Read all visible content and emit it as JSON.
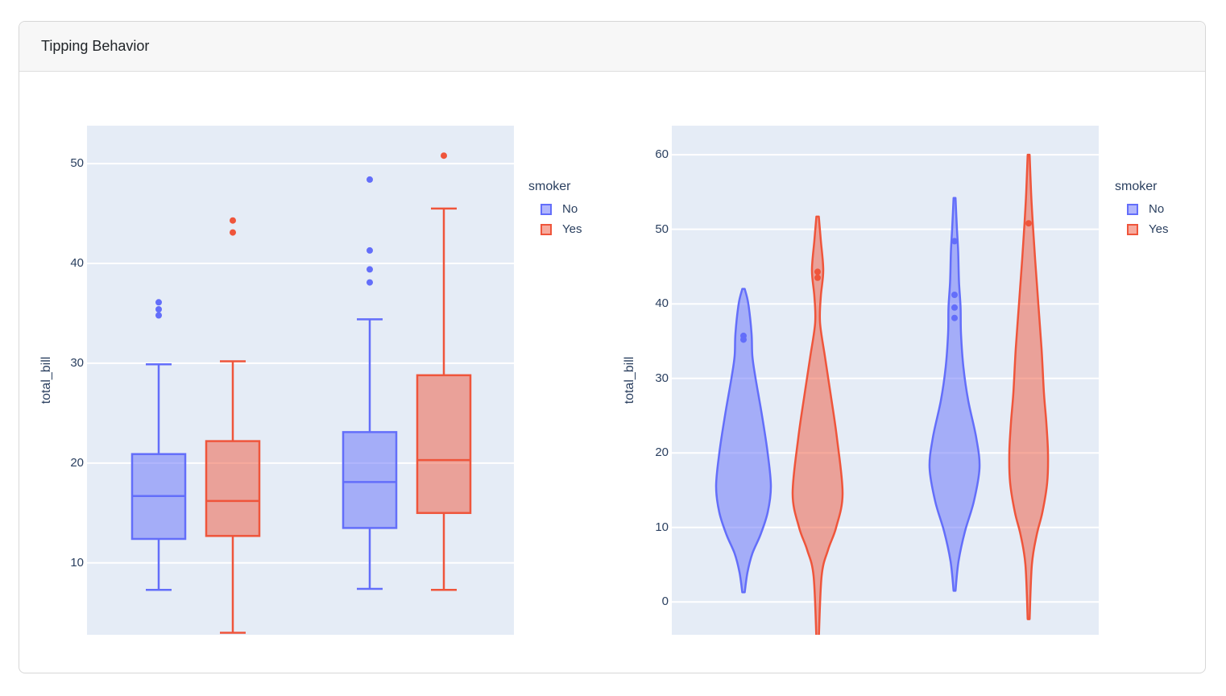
{
  "card": {
    "title": "Tipping Behavior"
  },
  "colors": {
    "no": "#636EFA",
    "yes": "#EF553B",
    "plot_bg": "#E5ECF6",
    "grid": "#FFFFFF",
    "axis_text": "#2A3F5F",
    "title_text": "#212529",
    "header_bg": "#F7F7F7",
    "card_border": "#D7D7D7"
  },
  "legend": {
    "title": "smoker",
    "items": [
      {
        "label": "No",
        "color": "#636EFA"
      },
      {
        "label": "Yes",
        "color": "#EF553B"
      }
    ]
  },
  "chart_data": [
    {
      "type": "box",
      "title": "",
      "ylabel": "total_bill",
      "yticks": [
        10,
        20,
        30,
        40,
        50
      ],
      "ylim": [
        2.8,
        53.8
      ],
      "grid": true,
      "x_tick_labels_visible": false,
      "legend_position": "right-top",
      "legend_title": "smoker",
      "series": [
        {
          "name": "No",
          "color": "#636EFA",
          "boxes": [
            {
              "low": 7.3,
              "q1": 12.4,
              "median": 16.7,
              "q3": 20.9,
              "high": 29.9,
              "outliers": [
                34.8,
                35.4,
                36.1
              ]
            },
            {
              "low": 7.4,
              "q1": 13.5,
              "median": 18.1,
              "q3": 23.1,
              "high": 34.4,
              "outliers": [
                38.1,
                39.4,
                41.3,
                48.4
              ]
            }
          ]
        },
        {
          "name": "Yes",
          "color": "#EF553B",
          "boxes": [
            {
              "low": 3.0,
              "q1": 12.7,
              "median": 16.2,
              "q3": 22.2,
              "high": 30.2,
              "outliers": [
                43.1,
                44.3
              ]
            },
            {
              "low": 7.3,
              "q1": 15.0,
              "median": 20.3,
              "q3": 28.8,
              "high": 45.5,
              "outliers": [
                50.8
              ]
            }
          ]
        }
      ]
    },
    {
      "type": "violin",
      "title": "",
      "ylabel": "total_bill",
      "yticks": [
        0,
        10,
        20,
        30,
        40,
        50,
        60
      ],
      "ylim": [
        -4.4,
        63.9
      ],
      "grid": true,
      "x_tick_labels_visible": false,
      "legend_position": "right-top",
      "legend_title": "smoker",
      "series": [
        {
          "name": "No",
          "color": "#636EFA",
          "violins": [
            {
              "span": [
                1.3,
                42.0
              ],
              "peak_at": 15.5,
              "profile": [
                [
                  42,
                  1.5
                ],
                [
                  40,
                  6
                ],
                [
                  36,
                  10
                ],
                [
                  33,
                  11
                ],
                [
                  30,
                  15
                ],
                [
                  25,
                  23
                ],
                [
                  20,
                  30
                ],
                [
                  15.5,
                  34
                ],
                [
                  12,
                  30
                ],
                [
                  9,
                  21
                ],
                [
                  6.5,
                  11
                ],
                [
                  4,
                  5
                ],
                [
                  1.3,
                  1.5
                ]
              ],
              "points": [
                35.7,
                35.2
              ]
            },
            {
              "span": [
                1.5,
                54.2
              ],
              "peak_at": 18,
              "profile": [
                [
                  54.2,
                  1.2
                ],
                [
                  50,
                  3
                ],
                [
                  47,
                  4.5
                ],
                [
                  43,
                  5.5
                ],
                [
                  39.5,
                  7.5
                ],
                [
                  36,
                  8
                ],
                [
                  31.5,
                  11
                ],
                [
                  27,
                  17
                ],
                [
                  22,
                  27
                ],
                [
                  18,
                  31
                ],
                [
                  13.5,
                  24
                ],
                [
                  9.5,
                  13
                ],
                [
                  5.5,
                  5
                ],
                [
                  1.5,
                  1.2
                ]
              ],
              "points": [
                48.4,
                41.2,
                39.5,
                38.1
              ]
            }
          ]
        },
        {
          "name": "Yes",
          "color": "#EF553B",
          "violins": [
            {
              "span": [
                -4.8,
                51.7
              ],
              "peak_at": 14.5,
              "profile": [
                [
                  51.7,
                  1.5
                ],
                [
                  48.5,
                  4
                ],
                [
                  44.5,
                  7
                ],
                [
                  41,
                  4
                ],
                [
                  37.5,
                  3
                ],
                [
                  33,
                  9
                ],
                [
                  28,
                  16
                ],
                [
                  22,
                  24
                ],
                [
                  14.5,
                  31
                ],
                [
                  10,
                  23
                ],
                [
                  7,
                  13
                ],
                [
                  3.5,
                  5
                ],
                [
                  -4.8,
                  1.5
                ]
              ],
              "points": [
                44.3,
                43.5
              ]
            },
            {
              "span": [
                -2.3,
                60.0
              ],
              "peak_at": 19,
              "profile": [
                [
                  60,
                  1.2
                ],
                [
                  55,
                  3
                ],
                [
                  51,
                  5
                ],
                [
                  46,
                  8
                ],
                [
                  40,
                  12
                ],
                [
                  34,
                  16
                ],
                [
                  28,
                  19
                ],
                [
                  24,
                  22
                ],
                [
                  20,
                  24
                ],
                [
                  16,
                  23
                ],
                [
                  12,
                  17
                ],
                [
                  9,
                  10
                ],
                [
                  5,
                  4
                ],
                [
                  -2.3,
                  1.2
                ]
              ],
              "points": [
                50.8
              ]
            }
          ]
        }
      ]
    }
  ]
}
